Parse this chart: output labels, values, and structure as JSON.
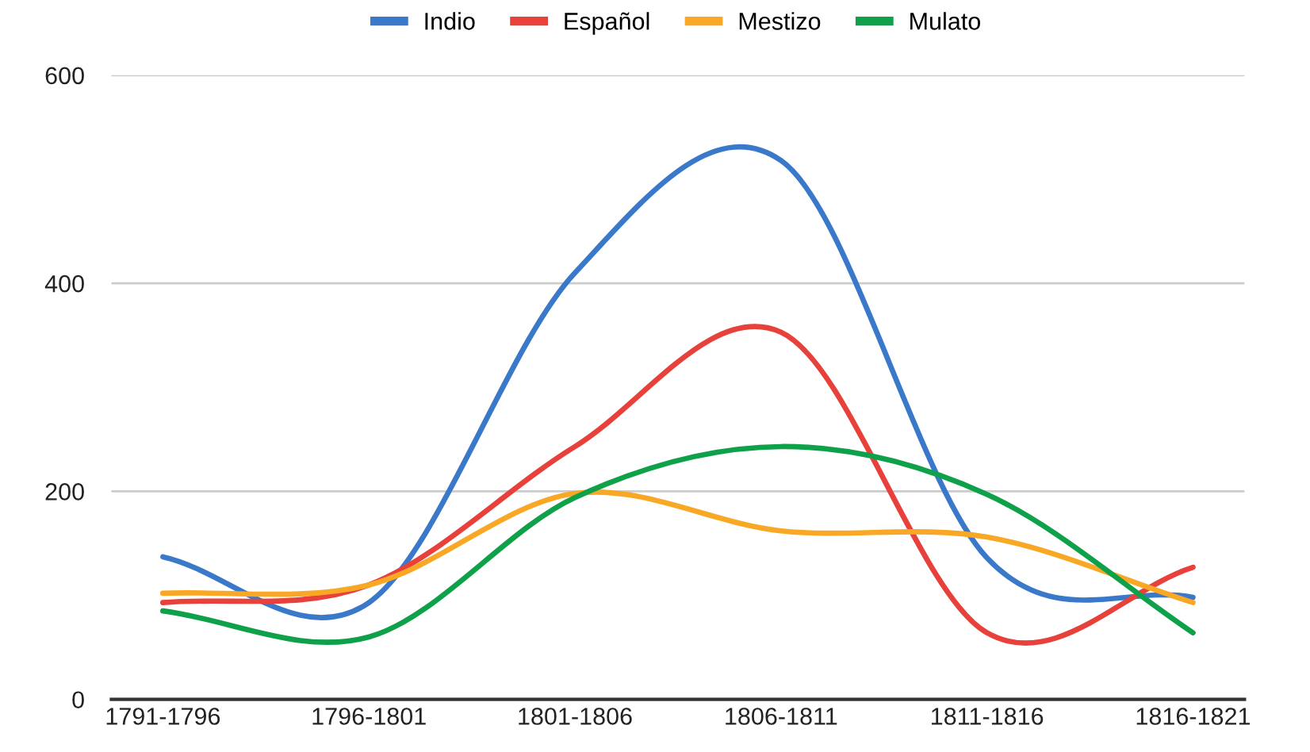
{
  "chart_data": {
    "type": "line",
    "categories": [
      "1791-1796",
      "1796-1801",
      "1801-1806",
      "1806-1811",
      "1811-1816",
      "1816-1821"
    ],
    "series": [
      {
        "name": "Indio",
        "color": "#3a78c9",
        "values": [
          137,
          93,
          410,
          518,
          136,
          98
        ]
      },
      {
        "name": "Español",
        "color": "#e8413b",
        "values": [
          93,
          110,
          243,
          353,
          64,
          127
        ]
      },
      {
        "name": "Mestizo",
        "color": "#f9a825",
        "values": [
          102,
          110,
          198,
          162,
          156,
          93
        ]
      },
      {
        "name": "Mulato",
        "color": "#0fa14a",
        "values": [
          85,
          60,
          194,
          243,
          197,
          64
        ]
      }
    ],
    "ylim": [
      0,
      600
    ],
    "yticks": [
      0,
      200,
      400,
      600
    ],
    "grid": "y",
    "legend": "top",
    "marker": "none",
    "line_style": "solid"
  }
}
